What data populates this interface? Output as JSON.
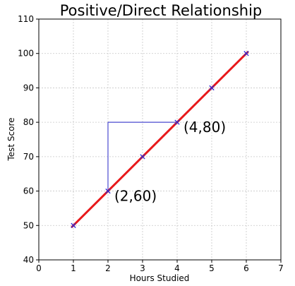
{
  "chart_data": {
    "type": "line",
    "title": "Positive/Direct Relationship",
    "xlabel": "Hours Studied",
    "ylabel": "Test Score",
    "xlim": [
      0,
      7
    ],
    "ylim": [
      40,
      110
    ],
    "xticks": [
      0,
      1,
      2,
      3,
      4,
      5,
      6,
      7
    ],
    "yticks": [
      40,
      50,
      60,
      70,
      80,
      90,
      100,
      110
    ],
    "grid": true,
    "series": [
      {
        "x": [
          1,
          2,
          3,
          4,
          5,
          6
        ],
        "y": [
          50,
          60,
          70,
          80,
          90,
          100
        ],
        "line_color": "#e8191b",
        "marker_color": "#2b2bd6",
        "marker": "x"
      }
    ],
    "guide": {
      "from": [
        2,
        60
      ],
      "to": [
        4,
        80
      ],
      "color": "#4a4ad0"
    },
    "annotations": [
      {
        "text": "(4,80)",
        "x": 4,
        "y": 80
      },
      {
        "text": "(2,60)",
        "x": 2,
        "y": 60
      }
    ]
  }
}
